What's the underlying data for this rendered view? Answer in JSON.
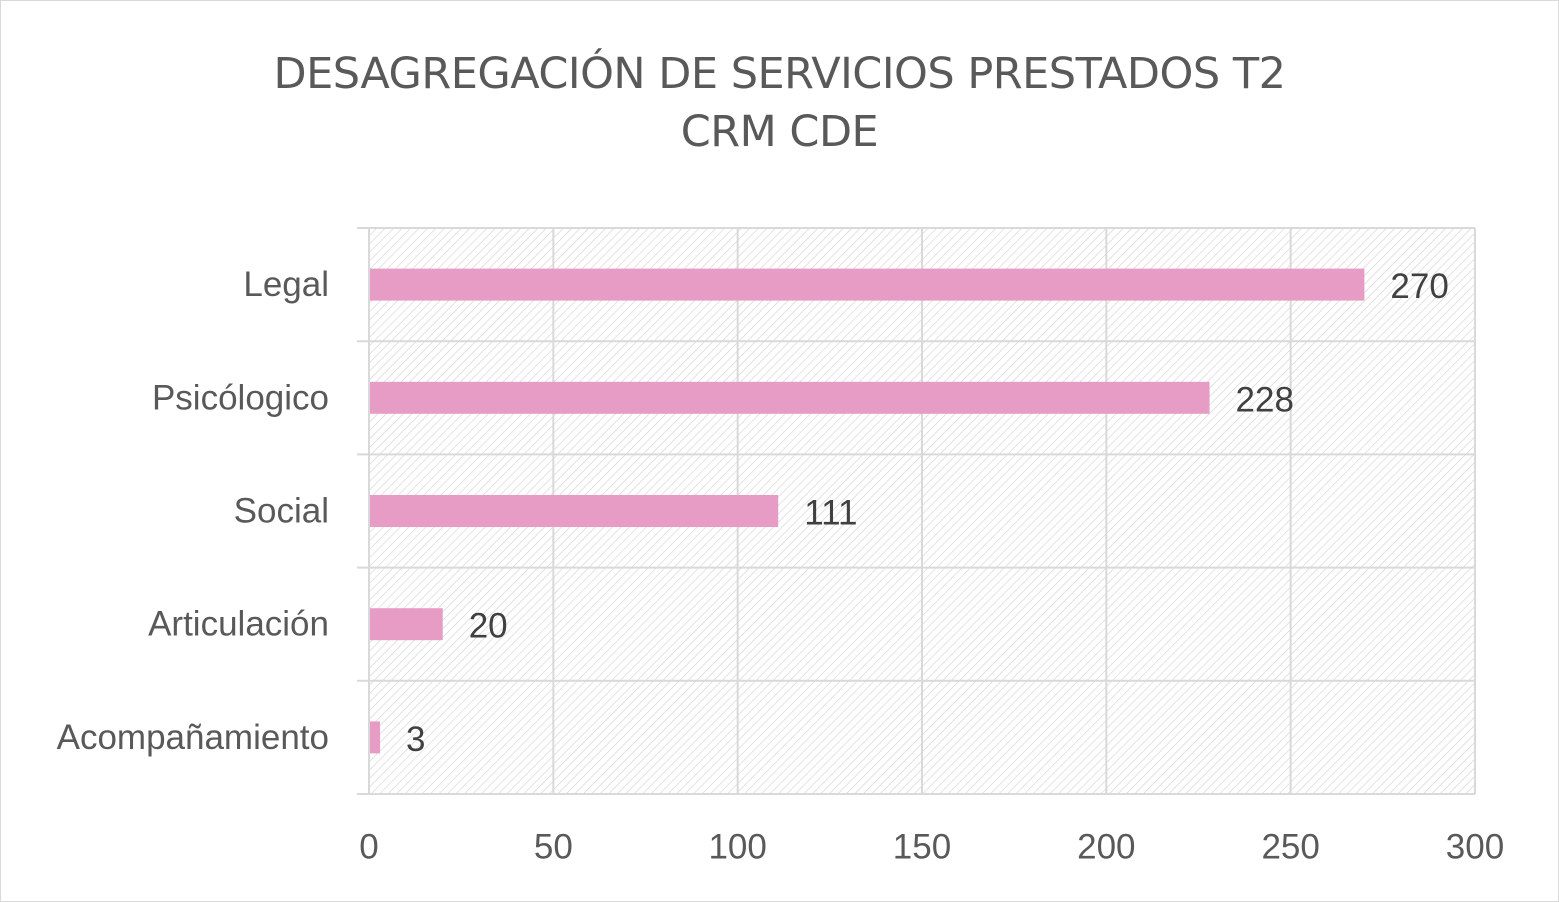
{
  "chart_data": {
    "type": "bar",
    "orientation": "horizontal",
    "title": [
      "DESAGREGACIÓN DE SERVICIOS PRESTADOS T2",
      "CRM CDE"
    ],
    "categories": [
      "Legal",
      "Psicólogico",
      "Social",
      "Articulación",
      "Acompañamiento"
    ],
    "values": [
      270,
      228,
      111,
      20,
      3
    ],
    "xlim": [
      0,
      300
    ],
    "xticks": [
      0,
      50,
      100,
      150,
      200,
      250,
      300
    ],
    "grid": true,
    "legend": "none",
    "data_labels": true,
    "colors": {
      "bar": "#e79cc6",
      "text": "#595959",
      "grid": "#d9d9d9",
      "hatch": "#d0d0d0"
    }
  }
}
